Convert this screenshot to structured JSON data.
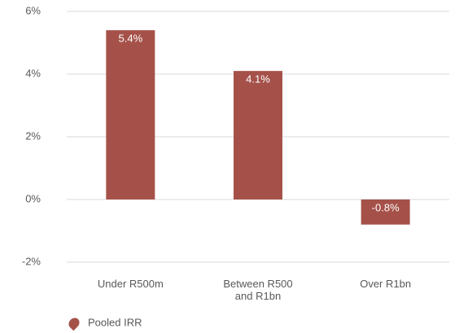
{
  "chart_data": {
    "type": "bar",
    "categories": [
      "Under R500m",
      "Between R500 and R1bn",
      "Over R1bn"
    ],
    "series": [
      {
        "name": "Pooled IRR",
        "color": "#a5514a",
        "values": [
          5.4,
          4.1,
          -0.8
        ],
        "value_labels": [
          "5.4%",
          "4.1%",
          "-0.8%"
        ]
      }
    ],
    "ylim": [
      -2,
      6
    ],
    "yticks": [
      {
        "value": -2,
        "label": "-2%"
      },
      {
        "value": 0,
        "label": "0%"
      },
      {
        "value": 2,
        "label": "2%"
      },
      {
        "value": 4,
        "label": "4%"
      },
      {
        "value": 6,
        "label": "6%"
      }
    ],
    "grid": true,
    "legend": "bottom-left"
  }
}
